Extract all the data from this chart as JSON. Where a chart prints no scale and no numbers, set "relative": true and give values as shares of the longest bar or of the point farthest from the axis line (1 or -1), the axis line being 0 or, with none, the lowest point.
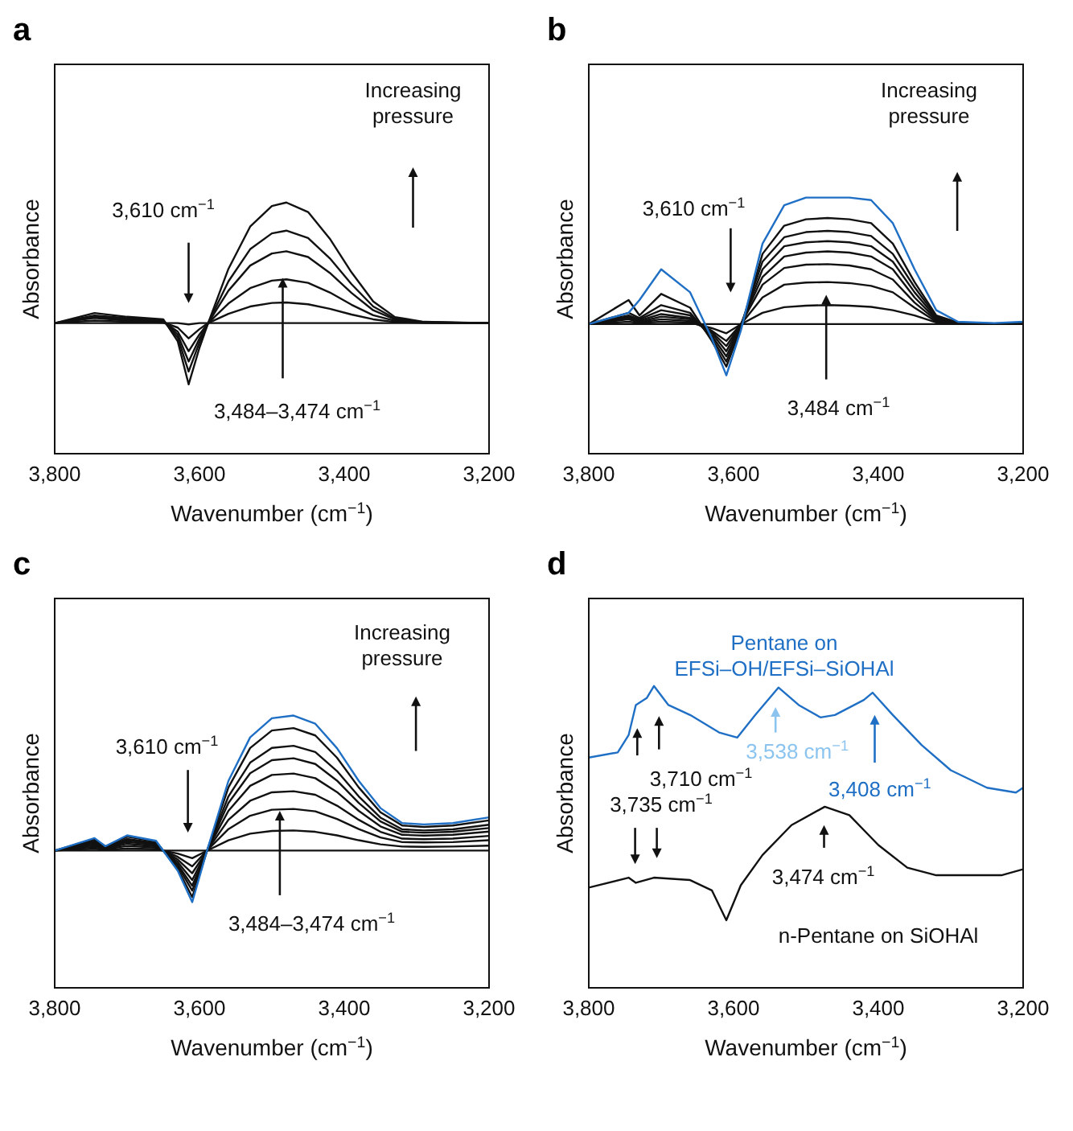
{
  "chart_data": [
    {
      "type": "line",
      "relative": true,
      "title": "a",
      "xlabel": "Wavenumber (cm$^{−1}$)",
      "ylabel": "Absorbance",
      "xlim": [
        3800,
        3200
      ],
      "xticks": [
        {
          "value": 3800,
          "label": "3,800"
        },
        {
          "value": 3600,
          "label": "3,600"
        },
        {
          "value": 3400,
          "label": "3,400"
        },
        {
          "value": 3200,
          "label": "3,200"
        }
      ],
      "x": [
        3800,
        3745,
        3700,
        3650,
        3630,
        3615,
        3600,
        3588,
        3560,
        3530,
        3500,
        3480,
        3450,
        3420,
        3390,
        3360,
        3330,
        3290,
        3200
      ],
      "series": [
        {
          "color": "#111111",
          "values": [
            0.52,
            0.56,
            0.545,
            0.535,
            0.447,
            0.276,
            0.422,
            0.52,
            0.736,
            0.904,
            0.986,
            1.0,
            0.962,
            0.856,
            0.722,
            0.606,
            0.544,
            0.525,
            0.52
          ]
        },
        {
          "color": "#111111",
          "values": [
            0.52,
            0.55,
            0.54,
            0.53,
            0.462,
            0.327,
            0.443,
            0.52,
            0.686,
            0.814,
            0.877,
            0.888,
            0.859,
            0.778,
            0.675,
            0.586,
            0.538,
            0.524,
            0.52
          ]
        },
        {
          "color": "#111111",
          "values": [
            0.52,
            0.545,
            0.535,
            0.53,
            0.474,
            0.367,
            0.459,
            0.52,
            0.649,
            0.749,
            0.797,
            0.806,
            0.783,
            0.72,
            0.64,
            0.571,
            0.534,
            0.523,
            0.52
          ]
        },
        {
          "color": "#111111",
          "values": [
            0.52,
            0.54,
            0.53,
            0.525,
            0.486,
            0.408,
            0.475,
            0.52,
            0.598,
            0.659,
            0.689,
            0.694,
            0.68,
            0.642,
            0.593,
            0.551,
            0.529,
            0.522,
            0.52
          ]
        },
        {
          "color": "#111111",
          "values": [
            0.52,
            0.53,
            0.525,
            0.522,
            0.502,
            0.459,
            0.496,
            0.52,
            0.557,
            0.586,
            0.6,
            0.602,
            0.595,
            0.577,
            0.554,
            0.535,
            0.524,
            0.521,
            0.52
          ]
        },
        {
          "color": "#111111",
          "values": [
            0.52,
            0.52,
            0.52,
            0.52,
            0.52,
            0.515,
            0.52,
            0.52,
            0.52,
            0.52,
            0.52,
            0.52,
            0.52,
            0.52,
            0.52,
            0.52,
            0.52,
            0.52,
            0.52
          ]
        }
      ],
      "annotations": [
        "Increasing pressure",
        "3,610 cm$^{−1}$",
        "3,484–3,474 cm$^{−1}$"
      ]
    },
    {
      "type": "line",
      "relative": true,
      "title": "b",
      "xlabel": "Wavenumber (cm$^{−1}$)",
      "ylabel": "Absorbance",
      "xlim": [
        3800,
        3200
      ],
      "xticks": [
        {
          "value": 3800,
          "label": "3,800"
        },
        {
          "value": 3600,
          "label": "3,600"
        },
        {
          "value": 3400,
          "label": "3,400"
        },
        {
          "value": 3200,
          "label": "3,200"
        }
      ],
      "x": [
        3800,
        3745,
        3730,
        3700,
        3660,
        3630,
        3610,
        3590,
        3560,
        3530,
        3500,
        3470,
        3440,
        3410,
        3380,
        3350,
        3320,
        3290,
        3240,
        3200
      ],
      "series": [
        {
          "color": "#111111",
          "values": [
            0.506,
            0.506,
            0.506,
            0.506,
            0.506,
            0.506,
            0.506,
            0.506,
            0.506,
            0.506,
            0.506,
            0.506,
            0.506,
            0.506,
            0.506,
            0.506,
            0.506,
            0.506,
            0.506,
            0.506
          ]
        },
        {
          "color": "#111111",
          "values": [
            0.506,
            0.515,
            0.51,
            0.515,
            0.512,
            0.49,
            0.47,
            0.505,
            0.55,
            0.572,
            0.578,
            0.58,
            0.578,
            0.573,
            0.56,
            0.54,
            0.512,
            0.507,
            0.506,
            0.506
          ]
        },
        {
          "color": "#111111",
          "values": [
            0.506,
            0.525,
            0.512,
            0.525,
            0.518,
            0.48,
            0.44,
            0.505,
            0.61,
            0.66,
            0.668,
            0.67,
            0.666,
            0.655,
            0.63,
            0.57,
            0.515,
            0.507,
            0.506,
            0.506
          ]
        },
        {
          "color": "#111111",
          "values": [
            0.506,
            0.53,
            0.515,
            0.535,
            0.525,
            0.475,
            0.42,
            0.505,
            0.66,
            0.725,
            0.738,
            0.74,
            0.735,
            0.72,
            0.68,
            0.59,
            0.52,
            0.508,
            0.506,
            0.506
          ]
        },
        {
          "color": "#111111",
          "values": [
            0.506,
            0.535,
            0.52,
            0.545,
            0.53,
            0.47,
            0.4,
            0.505,
            0.69,
            0.77,
            0.785,
            0.79,
            0.785,
            0.77,
            0.72,
            0.61,
            0.525,
            0.509,
            0.506,
            0.506
          ]
        },
        {
          "color": "#111111",
          "values": [
            0.506,
            0.54,
            0.525,
            0.56,
            0.54,
            0.46,
            0.38,
            0.5,
            0.72,
            0.81,
            0.825,
            0.83,
            0.825,
            0.81,
            0.75,
            0.63,
            0.53,
            0.51,
            0.507,
            0.507
          ]
        },
        {
          "color": "#111111",
          "values": [
            0.506,
            0.55,
            0.53,
            0.58,
            0.55,
            0.45,
            0.36,
            0.5,
            0.75,
            0.845,
            0.865,
            0.87,
            0.865,
            0.85,
            0.78,
            0.65,
            0.535,
            0.51,
            0.507,
            0.508
          ]
        },
        {
          "color": "#111111",
          "values": [
            0.506,
            0.6,
            0.54,
            0.624,
            0.57,
            0.44,
            0.34,
            0.49,
            0.78,
            0.89,
            0.915,
            0.92,
            0.915,
            0.9,
            0.82,
            0.67,
            0.54,
            0.512,
            0.508,
            0.51
          ]
        },
        {
          "color": "#1f6fc5",
          "values": [
            0.506,
            0.55,
            0.6,
            0.72,
            0.63,
            0.45,
            0.306,
            0.48,
            0.82,
            0.97,
            1.0,
            1.0,
            1.0,
            0.99,
            0.9,
            0.72,
            0.56,
            0.515,
            0.51,
            0.515
          ]
        }
      ],
      "annotations": [
        "Increasing pressure",
        "3,610 cm$^{−1}$",
        "3,484 cm$^{−1}$"
      ]
    },
    {
      "type": "line",
      "relative": true,
      "title": "c",
      "xlabel": "Wavenumber (cm$^{−1}$)",
      "ylabel": "Absorbance",
      "xlim": [
        3800,
        3200
      ],
      "xticks": [
        {
          "value": 3800,
          "label": "3,800"
        },
        {
          "value": 3600,
          "label": "3,600"
        },
        {
          "value": 3400,
          "label": "3,400"
        },
        {
          "value": 3200,
          "label": "3,200"
        }
      ],
      "x": [
        3800,
        3745,
        3730,
        3700,
        3660,
        3630,
        3610,
        3590,
        3560,
        3530,
        3500,
        3470,
        3440,
        3410,
        3380,
        3350,
        3320,
        3290,
        3250,
        3200
      ],
      "series": [
        {
          "color": "#111111",
          "values": [
            0.504,
            0.504,
            0.504,
            0.504,
            0.504,
            0.504,
            0.504,
            0.504,
            0.504,
            0.504,
            0.504,
            0.504,
            0.504,
            0.504,
            0.504,
            0.504,
            0.504,
            0.504,
            0.504,
            0.504
          ]
        },
        {
          "color": "#111111",
          "values": [
            0.504,
            0.511,
            0.506,
            0.512,
            0.509,
            0.493,
            0.476,
            0.503,
            0.542,
            0.566,
            0.576,
            0.578,
            0.573,
            0.56,
            0.542,
            0.527,
            0.519,
            0.518,
            0.519,
            0.522
          ]
        },
        {
          "color": "#111111",
          "values": [
            0.504,
            0.518,
            0.509,
            0.521,
            0.515,
            0.481,
            0.446,
            0.503,
            0.583,
            0.632,
            0.654,
            0.657,
            0.648,
            0.62,
            0.583,
            0.552,
            0.535,
            0.534,
            0.535,
            0.542
          ]
        },
        {
          "color": "#111111",
          "values": [
            0.504,
            0.524,
            0.511,
            0.529,
            0.52,
            0.471,
            0.421,
            0.502,
            0.617,
            0.687,
            0.718,
            0.722,
            0.709,
            0.669,
            0.617,
            0.573,
            0.548,
            0.546,
            0.548,
            0.558
          ]
        },
        {
          "color": "#111111",
          "values": [
            0.504,
            0.53,
            0.513,
            0.536,
            0.525,
            0.462,
            0.396,
            0.502,
            0.65,
            0.742,
            0.782,
            0.787,
            0.77,
            0.719,
            0.65,
            0.593,
            0.562,
            0.559,
            0.562,
            0.574
          ]
        },
        {
          "color": "#111111",
          "values": [
            0.504,
            0.535,
            0.515,
            0.542,
            0.529,
            0.453,
            0.375,
            0.501,
            0.679,
            0.788,
            0.836,
            0.843,
            0.822,
            0.761,
            0.679,
            0.611,
            0.573,
            0.57,
            0.573,
            0.587
          ]
        },
        {
          "color": "#111111",
          "values": [
            0.504,
            0.54,
            0.516,
            0.547,
            0.532,
            0.447,
            0.357,
            0.501,
            0.703,
            0.827,
            0.881,
            0.889,
            0.866,
            0.796,
            0.703,
            0.625,
            0.582,
            0.578,
            0.582,
            0.599
          ]
        },
        {
          "color": "#111111",
          "values": [
            0.504,
            0.546,
            0.519,
            0.555,
            0.537,
            0.437,
            0.333,
            0.5,
            0.736,
            0.881,
            0.945,
            0.954,
            0.927,
            0.845,
            0.736,
            0.645,
            0.596,
            0.591,
            0.596,
            0.615
          ]
        },
        {
          "color": "#1f6fc5",
          "values": [
            0.504,
            0.55,
            0.52,
            0.56,
            0.54,
            0.43,
            0.315,
            0.5,
            0.76,
            0.92,
            0.99,
            1.0,
            0.97,
            0.88,
            0.76,
            0.66,
            0.605,
            0.6,
            0.605,
            0.626
          ]
        }
      ],
      "annotations": [
        "Increasing pressure",
        "3,610 cm$^{−1}$",
        "3,484–3,474 cm$^{−1}$"
      ]
    },
    {
      "type": "line",
      "relative": true,
      "title": "d",
      "xlabel": "Wavenumber (cm$^{−1}$)",
      "ylabel": "Absorbance",
      "xlim": [
        3800,
        3200
      ],
      "xticks": [
        {
          "value": 3800,
          "label": "3,800"
        },
        {
          "value": 3600,
          "label": "3,600"
        },
        {
          "value": 3400,
          "label": "3,400"
        },
        {
          "value": 3200,
          "label": "3,200"
        }
      ],
      "series": [
        {
          "name": "Pentane on EFSi–OH/EFSi–SiOHAl",
          "color": "#1f6fc5",
          "x": [
            3800,
            3760,
            3745,
            3735,
            3720,
            3710,
            3690,
            3660,
            3620,
            3595,
            3570,
            3538,
            3510,
            3480,
            3460,
            3420,
            3408,
            3380,
            3340,
            3300,
            3250,
            3210,
            3200
          ],
          "values": [
            0.763,
            0.78,
            0.837,
            0.937,
            0.96,
            1.0,
            0.937,
            0.904,
            0.846,
            0.829,
            0.904,
            0.995,
            0.937,
            0.896,
            0.904,
            0.954,
            0.978,
            0.904,
            0.804,
            0.721,
            0.663,
            0.647,
            0.663
          ]
        },
        {
          "name": "n-Pentane on SiOHAl",
          "color": "#111111",
          "x": [
            3800,
            3745,
            3735,
            3710,
            3660,
            3630,
            3610,
            3590,
            3560,
            3520,
            3474,
            3440,
            3400,
            3360,
            3320,
            3260,
            3230,
            3200
          ],
          "values": [
            0.332,
            0.365,
            0.348,
            0.365,
            0.357,
            0.323,
            0.224,
            0.34,
            0.44,
            0.539,
            0.6,
            0.572,
            0.473,
            0.398,
            0.373,
            0.373,
            0.373,
            0.393
          ]
        }
      ],
      "annotations": [
        "3,710 cm$^{−1}$",
        "3,735 cm$^{−1}$",
        "3,538 cm$^{−1}$",
        "3,408 cm$^{−1}$",
        "3,474 cm$^{−1}$"
      ]
    }
  ]
}
